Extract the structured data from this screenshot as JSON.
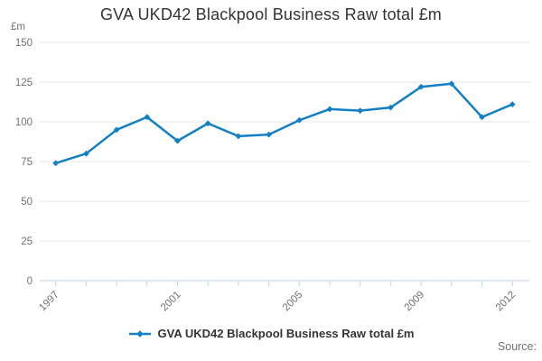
{
  "title": "GVA UKD42 Blackpool Business Raw total £m",
  "y_axis_unit": "£m",
  "legend": {
    "label": "GVA UKD42 Blackpool Business Raw total £m"
  },
  "source_label": "Source:",
  "colors": {
    "series": "#1380c4",
    "grid": "#e6e6e6",
    "axis": "#c5d3e2",
    "tick_label": "#707070",
    "title_text": "#333333",
    "legend_text": "#333333",
    "source_text": "#707070"
  },
  "chart_data": {
    "type": "line",
    "x": [
      1997,
      1998,
      1999,
      2000,
      2001,
      2002,
      2003,
      2004,
      2005,
      2006,
      2007,
      2008,
      2009,
      2010,
      2011,
      2012
    ],
    "series": [
      {
        "name": "GVA UKD42 Blackpool Business Raw total £m",
        "values": [
          74,
          80,
          95,
          103,
          88,
          99,
          91,
          92,
          101,
          108,
          107,
          109,
          122,
          124,
          103,
          111
        ]
      }
    ],
    "title": "GVA UKD42 Blackpool Business Raw total £m",
    "xlabel": "",
    "ylabel": "£m",
    "ylim": [
      0,
      150
    ],
    "yticks": [
      0,
      25,
      50,
      75,
      100,
      125,
      150
    ],
    "xticks_labeled": [
      1997,
      2001,
      2005,
      2009,
      2012
    ],
    "grid": true,
    "legend_position": "bottom",
    "marker": "diamond"
  }
}
